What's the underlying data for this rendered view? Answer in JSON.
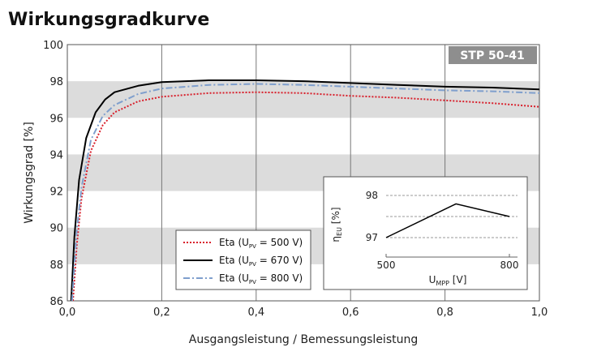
{
  "title": "Wirkungsgradkurve",
  "chart_data": [
    {
      "type": "line",
      "badge": "STP 50-41",
      "xlabel": "Ausgangsleistung / Bemessungsleistung",
      "ylabel": "Wirkungsgrad [%]",
      "xlim": [
        0.0,
        1.0
      ],
      "ylim": [
        86,
        100
      ],
      "xticks": [
        "0,0",
        "0,2",
        "0,4",
        "0,6",
        "0,8",
        "1,0"
      ],
      "yticks": [
        "86",
        "88",
        "90",
        "92",
        "94",
        "96",
        "98",
        "100"
      ],
      "legend_position": "bottom-center",
      "series": [
        {
          "name": "Eta (U_PV = 500 V)",
          "legend_prefix": "Eta (U",
          "legend_sub": "PV",
          "legend_suffix": " = 500 V)",
          "color": "#d8202c",
          "style": "dotted",
          "x": [
            0.012,
            0.02,
            0.03,
            0.05,
            0.075,
            0.1,
            0.15,
            0.2,
            0.3,
            0.4,
            0.5,
            0.6,
            0.7,
            0.8,
            0.9,
            1.0
          ],
          "y": [
            86.0,
            89.0,
            91.6,
            94.2,
            95.6,
            96.3,
            96.9,
            97.15,
            97.35,
            97.4,
            97.35,
            97.2,
            97.1,
            96.95,
            96.8,
            96.6
          ]
        },
        {
          "name": "Eta (U_PV = 670 V)",
          "legend_prefix": "Eta (U",
          "legend_sub": "PV",
          "legend_suffix": " = 670 V)",
          "color": "#000000",
          "style": "solid",
          "x": [
            0.008,
            0.015,
            0.025,
            0.04,
            0.06,
            0.08,
            0.1,
            0.15,
            0.2,
            0.3,
            0.4,
            0.5,
            0.6,
            0.7,
            0.8,
            0.9,
            1.0
          ],
          "y": [
            86.0,
            89.5,
            92.6,
            94.9,
            96.3,
            97.0,
            97.4,
            97.75,
            97.95,
            98.05,
            98.05,
            98.0,
            97.9,
            97.8,
            97.7,
            97.65,
            97.55
          ]
        },
        {
          "name": "Eta (U_PV = 800 V)",
          "legend_prefix": "Eta (U",
          "legend_sub": "PV",
          "legend_suffix": " = 800 V)",
          "color": "#7f9fcd",
          "style": "dashdot",
          "x": [
            0.01,
            0.02,
            0.03,
            0.05,
            0.075,
            0.1,
            0.15,
            0.2,
            0.3,
            0.4,
            0.5,
            0.6,
            0.7,
            0.8,
            0.9,
            1.0
          ],
          "y": [
            86.0,
            89.8,
            92.2,
            94.8,
            96.1,
            96.7,
            97.3,
            97.6,
            97.8,
            97.85,
            97.8,
            97.7,
            97.6,
            97.5,
            97.45,
            97.35
          ]
        }
      ]
    },
    {
      "type": "line",
      "xlabel_prefix": "U",
      "xlabel_sub": "MPP",
      "xlabel_suffix": " [V]",
      "ylabel_prefix": "η",
      "ylabel_sub": "EU",
      "ylabel_suffix": " [%]",
      "xlim": [
        500,
        800
      ],
      "ylim": [
        97,
        98
      ],
      "xticks": [
        "500",
        "800"
      ],
      "yticks": [
        "97",
        "98"
      ],
      "series": [
        {
          "color": "#000000",
          "x": [
            500,
            670,
            800
          ],
          "y": [
            97.0,
            97.8,
            97.5
          ]
        }
      ]
    }
  ]
}
